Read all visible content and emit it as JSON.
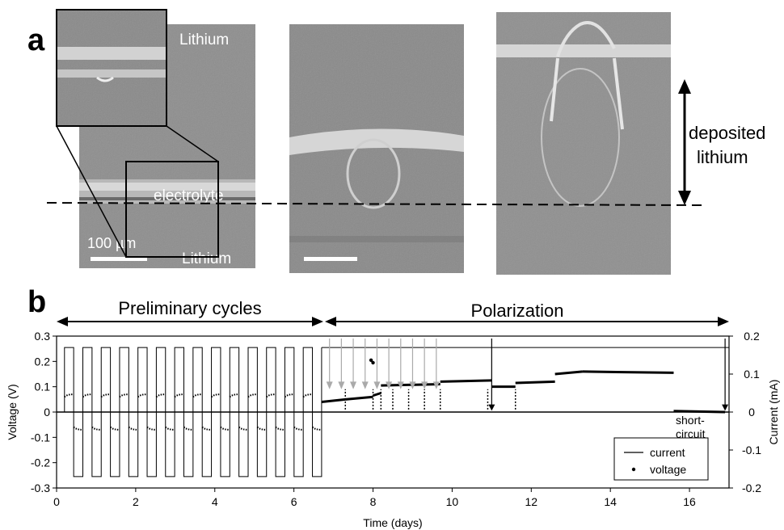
{
  "panel_a": {
    "label": "a",
    "image1_labels": {
      "top": "Lithium",
      "middle": "electrolyte",
      "bottom": "Lithium",
      "scale_bar": "100 µm"
    },
    "annotation": {
      "line1": "deposited",
      "line2": "lithium"
    }
  },
  "panel_b": {
    "label": "b",
    "phase_preliminary": "Preliminary cycles",
    "phase_polarization": "Polarization",
    "annotation_short": {
      "line1": "short-",
      "line2": "circuit"
    }
  },
  "chart_data": {
    "type": "line",
    "xlabel": "Time (days)",
    "ylabel": "Voltage (V)",
    "y2label": "Current (mA)",
    "xlim": [
      0,
      17
    ],
    "ylim": [
      -0.3,
      0.3
    ],
    "y2lim": [
      -0.2,
      0.2
    ],
    "x_ticks": [
      "0",
      "2",
      "4",
      "6",
      "8",
      "10",
      "12",
      "14",
      "16"
    ],
    "y_ticks": [
      "0.3",
      "0.2",
      "0.1",
      "0",
      "-0.1",
      "-0.2",
      "-0.3"
    ],
    "y2_ticks": [
      "0.2",
      "0.1",
      "0",
      "-0.1",
      "-0.2"
    ],
    "legend": {
      "position": "bottom-right",
      "entries": [
        "current",
        "voltage"
      ]
    },
    "series": [
      {
        "name": "current",
        "axis": "right",
        "preliminary": {
          "cycles": 14,
          "t_start": 0.2,
          "t_end": 6.7,
          "amplitude": 0.17
        },
        "polarization": {
          "t_start": 6.7,
          "t_end": 17.0,
          "value": 0.17
        }
      },
      {
        "name": "voltage",
        "axis": "left",
        "preliminary": {
          "cycles": 14,
          "t_start": 0.2,
          "t_end": 6.7,
          "amplitude": 0.07
        },
        "polarization_segments": [
          {
            "t0": 6.7,
            "t1": 7.3,
            "v0": 0.04,
            "v1": 0.05
          },
          {
            "t0": 7.3,
            "t1": 8.0,
            "v0": 0.05,
            "v1": 0.06
          },
          {
            "t0": 8.0,
            "t1": 8.2,
            "v0": 0.065,
            "v1": 0.075
          },
          {
            "t0": 8.2,
            "t1": 9.7,
            "v0": 0.105,
            "v1": 0.11
          },
          {
            "t0": 9.7,
            "t1": 11.0,
            "v0": 0.12,
            "v1": 0.125
          },
          {
            "t0": 11.0,
            "t1": 11.6,
            "v0": 0.1,
            "v1": 0.1
          },
          {
            "t0": 11.6,
            "t1": 12.6,
            "v0": 0.115,
            "v1": 0.12
          },
          {
            "t0": 12.6,
            "t1": 13.3,
            "v0": 0.15,
            "v1": 0.16
          },
          {
            "t0": 13.3,
            "t1": 15.6,
            "v0": 0.16,
            "v1": 0.155
          },
          {
            "t0": 15.6,
            "t1": 16.9,
            "v0": 0.004,
            "v1": 0.0
          }
        ],
        "dips": [
          7.3,
          8.0,
          8.2,
          8.5,
          8.9,
          9.3,
          9.7,
          10.9,
          11.6
        ],
        "outlier_points": [
          {
            "t": 7.95,
            "v": 0.205
          },
          {
            "t": 8.0,
            "v": 0.195
          }
        ]
      }
    ],
    "gray_arrows_t": [
      6.9,
      7.2,
      7.5,
      7.8,
      8.1,
      8.4,
      8.7,
      9.0,
      9.3,
      9.6
    ],
    "black_arrows_t": [
      11.0,
      16.9
    ]
  }
}
